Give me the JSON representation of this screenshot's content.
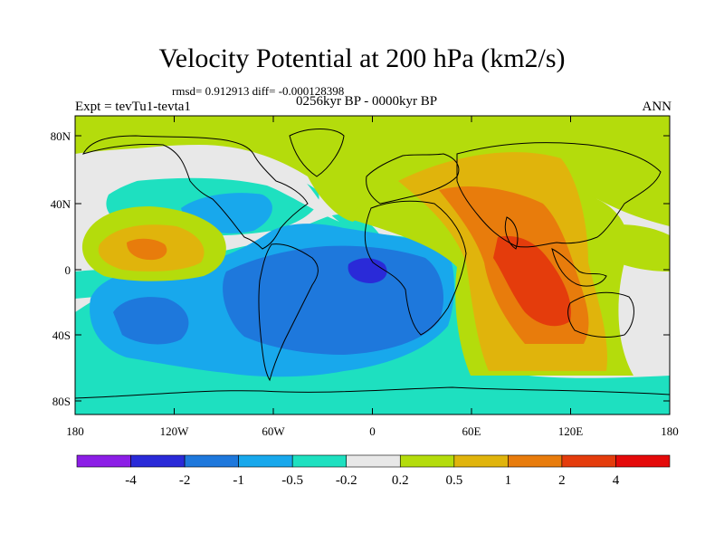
{
  "title": "Velocity Potential at 200 hPa (km2/s)",
  "stats": "rmsd= 0.912913 diff= -0.000128398",
  "expt": "Expt = tevTu1-tevta1",
  "period": "0256kyr BP - 0000kyr BP",
  "season": "ANN",
  "lat_ticks": [
    "80N",
    "40N",
    "0",
    "40S",
    "80S"
  ],
  "lon_ticks": [
    "180",
    "120W",
    "60W",
    "0",
    "60E",
    "120E",
    "180"
  ],
  "colorbar": {
    "labels": [
      "-4",
      "-2",
      "-1",
      "-0.5",
      "-0.2",
      "0.2",
      "0.5",
      "1",
      "2",
      "4"
    ],
    "colors": [
      "#8c1ee6",
      "#2a2ad8",
      "#1e78dc",
      "#18a8ec",
      "#1ee0c0",
      "#e8e8e8",
      "#b4dc0c",
      "#e0b40c",
      "#e87c0c",
      "#e43c0c",
      "#e40a0a"
    ]
  },
  "field_colors": {
    "neg4": "#8c1ee6",
    "neg2": "#2a2ad8",
    "neg1": "#1e78dc",
    "neg05": "#18a8ec",
    "neg02": "#1ee0c0",
    "zero": "#e8e8e8",
    "pos02": "#b4dc0c",
    "pos05": "#e0b40c",
    "pos1": "#e87c0c",
    "pos2": "#e43c0c",
    "pos4": "#e40a0a"
  }
}
